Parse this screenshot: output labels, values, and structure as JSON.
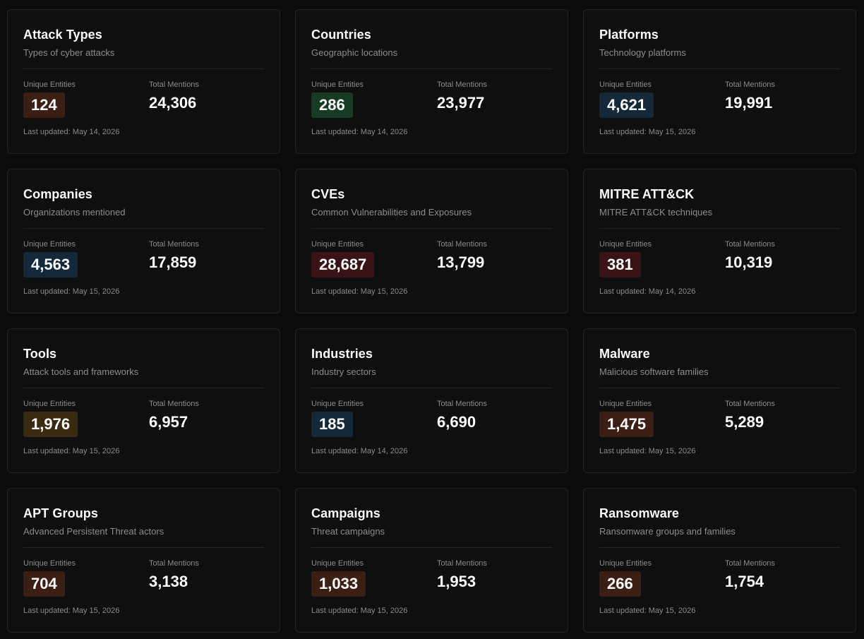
{
  "labels": {
    "unique": "Unique Entities",
    "total": "Total Mentions"
  },
  "colors": {
    "background": "#0b0b0b",
    "card": "#0f0f0f",
    "border": "#232323",
    "tone_rust": "#3b1e14",
    "tone_green": "#163a24",
    "tone_blue": "#13293a",
    "tone_maroon": "#3a1316",
    "tone_amber": "#3a2a12"
  },
  "cards": [
    {
      "title": "Attack Types",
      "description": "Types of cyber attacks",
      "unique": "124",
      "total": "24,306",
      "updated": "Last updated: May 14, 2026",
      "tone": "rust"
    },
    {
      "title": "Countries",
      "description": "Geographic locations",
      "unique": "286",
      "total": "23,977",
      "updated": "Last updated: May 14, 2026",
      "tone": "green"
    },
    {
      "title": "Platforms",
      "description": "Technology platforms",
      "unique": "4,621",
      "total": "19,991",
      "updated": "Last updated: May 15, 2026",
      "tone": "blue"
    },
    {
      "title": "Companies",
      "description": "Organizations mentioned",
      "unique": "4,563",
      "total": "17,859",
      "updated": "Last updated: May 15, 2026",
      "tone": "blue"
    },
    {
      "title": "CVEs",
      "description": "Common Vulnerabilities and Exposures",
      "unique": "28,687",
      "total": "13,799",
      "updated": "Last updated: May 15, 2026",
      "tone": "maroon"
    },
    {
      "title": "MITRE ATT&CK",
      "description": "MITRE ATT&CK techniques",
      "unique": "381",
      "total": "10,319",
      "updated": "Last updated: May 14, 2026",
      "tone": "maroon"
    },
    {
      "title": "Tools",
      "description": "Attack tools and frameworks",
      "unique": "1,976",
      "total": "6,957",
      "updated": "Last updated: May 15, 2026",
      "tone": "amber"
    },
    {
      "title": "Industries",
      "description": "Industry sectors",
      "unique": "185",
      "total": "6,690",
      "updated": "Last updated: May 14, 2026",
      "tone": "blue"
    },
    {
      "title": "Malware",
      "description": "Malicious software families",
      "unique": "1,475",
      "total": "5,289",
      "updated": "Last updated: May 15, 2026",
      "tone": "rust"
    },
    {
      "title": "APT Groups",
      "description": "Advanced Persistent Threat actors",
      "unique": "704",
      "total": "3,138",
      "updated": "Last updated: May 15, 2026",
      "tone": "rust"
    },
    {
      "title": "Campaigns",
      "description": "Threat campaigns",
      "unique": "1,033",
      "total": "1,953",
      "updated": "Last updated: May 15, 2026",
      "tone": "rust"
    },
    {
      "title": "Ransomware",
      "description": "Ransomware groups and families",
      "unique": "266",
      "total": "1,754",
      "updated": "Last updated: May 15, 2026",
      "tone": "rust"
    }
  ]
}
